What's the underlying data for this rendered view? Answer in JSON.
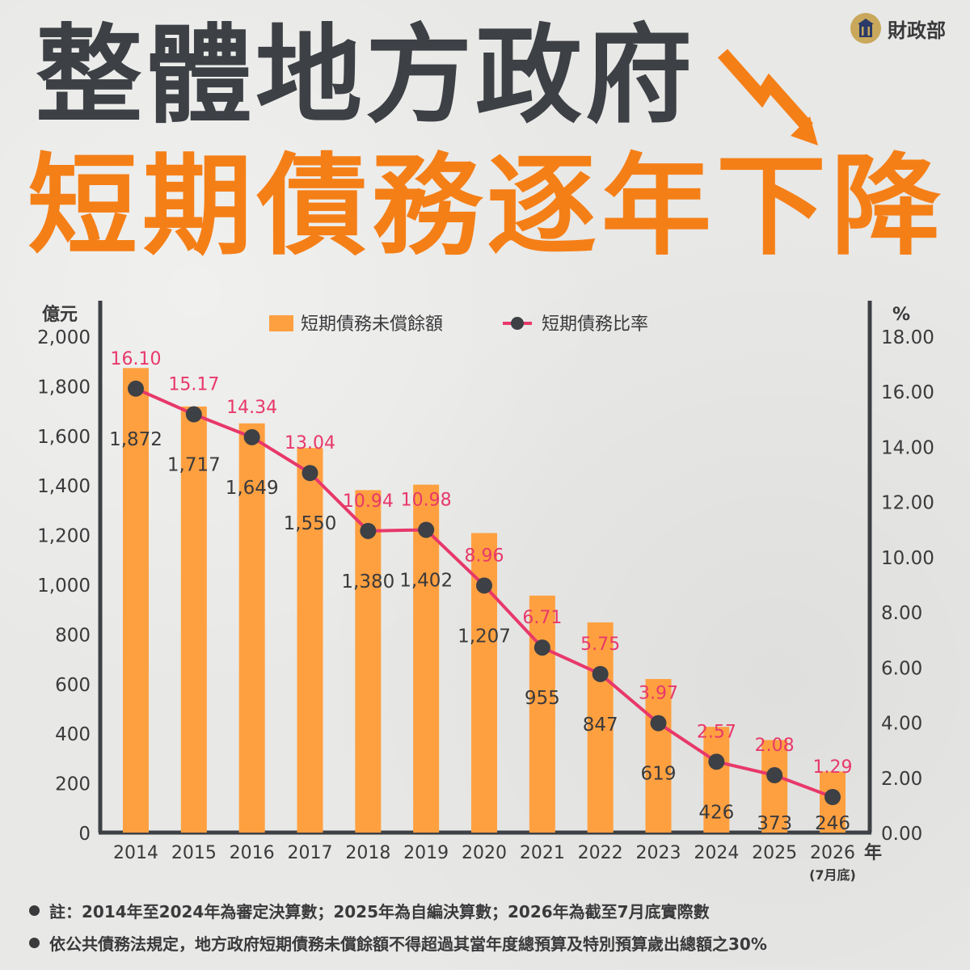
{
  "brand": {
    "name": "財政部",
    "logo_icon": "ministry-of-finance-emblem-icon"
  },
  "headline": {
    "line1": "整體地方政府",
    "line2": "短期債務逐年下降",
    "arrow_icon": "downward-trend-arrow-icon",
    "line1_color": "#3d4045",
    "accent_color": "#f57f17"
  },
  "chart_data": {
    "type": "bar",
    "categories": [
      "2014",
      "2015",
      "2016",
      "2017",
      "2018",
      "2019",
      "2020",
      "2021",
      "2022",
      "2023",
      "2024",
      "2025",
      "2026"
    ],
    "category_note": "(7月底)",
    "x_unit": "年",
    "series": [
      {
        "name": "短期債務未償餘額",
        "type": "bar",
        "axis": "left",
        "color": "#ffa040",
        "values": [
          1872,
          1717,
          1649,
          1550,
          1380,
          1402,
          1207,
          955,
          847,
          619,
          426,
          373,
          246
        ],
        "labels": [
          "1,872",
          "1,717",
          "1,649",
          "1,550",
          "1,380",
          "1,402",
          "1,207",
          "955",
          "847",
          "619",
          "426",
          "373",
          "246"
        ]
      },
      {
        "name": "短期債務比率",
        "type": "line",
        "axis": "right",
        "color": "#e8386a",
        "marker_color": "#3d4045",
        "values": [
          16.1,
          15.17,
          14.34,
          13.04,
          10.94,
          10.98,
          8.96,
          6.71,
          5.75,
          3.97,
          2.57,
          2.08,
          1.29
        ],
        "labels": [
          "16.10",
          "15.17",
          "14.34",
          "13.04",
          "10.94",
          "10.98",
          "8.96",
          "6.71",
          "5.75",
          "3.97",
          "2.57",
          "2.08",
          "1.29"
        ]
      }
    ],
    "y_left": {
      "label": "億元",
      "range": [
        0,
        2000
      ],
      "ticks": [
        0,
        200,
        400,
        600,
        800,
        1000,
        1200,
        1400,
        1600,
        1800,
        2000
      ],
      "tick_labels": [
        "0",
        "200",
        "400",
        "600",
        "800",
        "1,000",
        "1,200",
        "1,400",
        "1,600",
        "1,800",
        "2,000"
      ]
    },
    "y_right": {
      "label": "%",
      "range": [
        0,
        18
      ],
      "ticks": [
        0,
        2,
        4,
        6,
        8,
        10,
        12,
        14,
        16,
        18
      ],
      "tick_labels": [
        "0.00",
        "2.00",
        "4.00",
        "6.00",
        "8.00",
        "10.00",
        "12.00",
        "14.00",
        "16.00",
        "18.00"
      ]
    },
    "legend_position": "top-center",
    "grid": false
  },
  "notes": [
    "註：2014年至2024年為審定決算數；2025年為自編決算數；2026年為截至7月底實際數",
    "依公共債務法規定，地方政府短期債務未償餘額不得超過其當年度總預算及特別預算歲出總額之30%"
  ]
}
